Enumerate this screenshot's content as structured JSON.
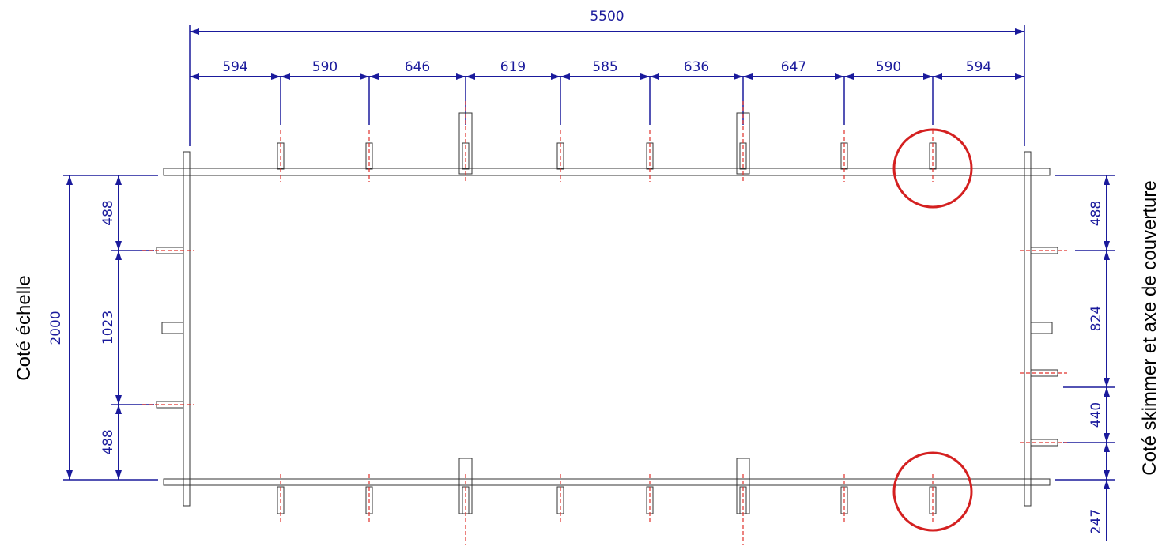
{
  "top_dimensions": {
    "total": 5500,
    "segments": [
      594,
      590,
      646,
      619,
      585,
      636,
      647,
      590,
      594
    ]
  },
  "left_dimensions": {
    "total": 2000,
    "segments": [
      488,
      1023,
      488
    ]
  },
  "right_dimensions": {
    "segments": [
      488,
      824,
      440,
      247
    ]
  },
  "labels": {
    "left": "Coté échelle",
    "right": "Coté skimmer et axe de couverture"
  }
}
